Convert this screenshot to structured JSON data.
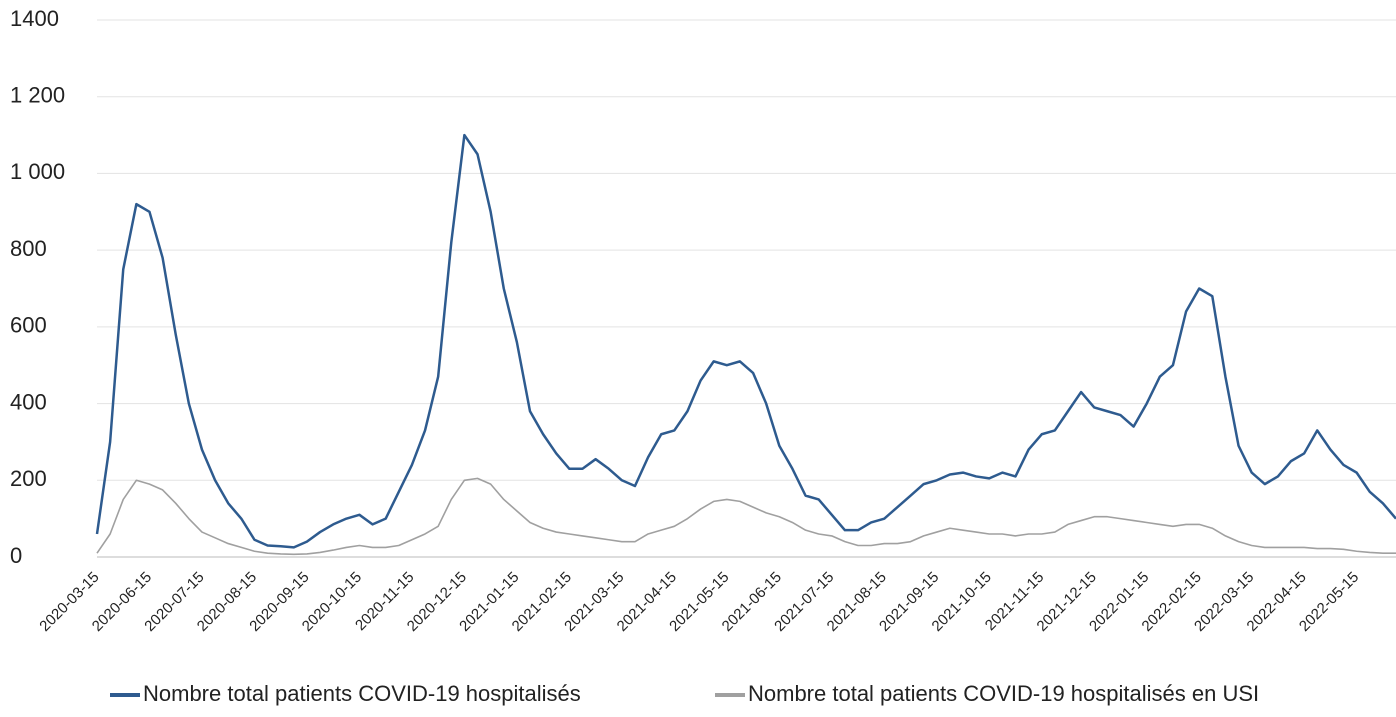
{
  "chart_data": {
    "type": "line",
    "categories": [
      "2020-03-15",
      null,
      null,
      null,
      "2020-06-15",
      null,
      null,
      null,
      "2020-07-15",
      null,
      null,
      null,
      "2020-08-15",
      null,
      null,
      null,
      "2020-09-15",
      null,
      null,
      null,
      "2020-10-15",
      null,
      null,
      null,
      "2020-11-15",
      null,
      null,
      null,
      "2020-12-15",
      null,
      null,
      null,
      "2021-01-15",
      null,
      null,
      null,
      "2021-02-15",
      null,
      null,
      null,
      "2021-03-15",
      null,
      null,
      null,
      "2021-04-15",
      null,
      null,
      null,
      "2021-05-15",
      null,
      null,
      null,
      "2021-06-15",
      null,
      null,
      null,
      "2021-07-15",
      null,
      null,
      null,
      "2021-08-15",
      null,
      null,
      null,
      "2021-09-15",
      null,
      null,
      null,
      "2021-10-15",
      null,
      null,
      null,
      "2021-11-15",
      null,
      null,
      null,
      "2021-12-15",
      null,
      null,
      null,
      "2022-01-15",
      null,
      null,
      null,
      "2022-02-15",
      null,
      null,
      null,
      "2022-03-15",
      null,
      null,
      null,
      "2022-04-15",
      null,
      null,
      null,
      "2022-05-15",
      null,
      null,
      null
    ],
    "series": [
      {
        "name": "Nombre total patients COVID-19 hospitalisés",
        "color": "#2e5b8f",
        "values": [
          60,
          300,
          750,
          920,
          900,
          780,
          580,
          400,
          280,
          200,
          140,
          100,
          45,
          30,
          28,
          25,
          40,
          65,
          85,
          100,
          110,
          85,
          100,
          170,
          240,
          330,
          470,
          820,
          1100,
          1050,
          900,
          700,
          560,
          380,
          320,
          270,
          230,
          230,
          255,
          230,
          200,
          185,
          260,
          320,
          330,
          380,
          460,
          510,
          500,
          510,
          480,
          400,
          290,
          230,
          160,
          150,
          110,
          70,
          70,
          90,
          100,
          130,
          160,
          190,
          200,
          215,
          220,
          210,
          205,
          220,
          210,
          280,
          320,
          330,
          380,
          430,
          390,
          380,
          370,
          340,
          400,
          470,
          500,
          640,
          700,
          680,
          470,
          290,
          220,
          190,
          210,
          250,
          270,
          330,
          280,
          240,
          220,
          170,
          140,
          100
        ]
      },
      {
        "name": "Nombre total patients COVID-19 hospitalisés en USI",
        "color": "#a0a0a0",
        "values": [
          10,
          60,
          150,
          200,
          190,
          175,
          140,
          100,
          65,
          50,
          35,
          25,
          15,
          10,
          8,
          7,
          8,
          12,
          18,
          25,
          30,
          25,
          25,
          30,
          45,
          60,
          80,
          150,
          200,
          205,
          190,
          150,
          120,
          90,
          75,
          65,
          60,
          55,
          50,
          45,
          40,
          40,
          60,
          70,
          80,
          100,
          125,
          145,
          150,
          145,
          130,
          115,
          105,
          90,
          70,
          60,
          55,
          40,
          30,
          30,
          35,
          35,
          40,
          55,
          65,
          75,
          70,
          65,
          60,
          60,
          55,
          60,
          60,
          65,
          85,
          95,
          105,
          105,
          100,
          95,
          90,
          85,
          80,
          85,
          85,
          75,
          55,
          40,
          30,
          25,
          25,
          25,
          25,
          22,
          22,
          20,
          15,
          12,
          10,
          10
        ]
      }
    ],
    "ylim": [
      0,
      1400
    ],
    "yticks": [
      0,
      200,
      400,
      600,
      800,
      {
        "value": 1000,
        "label": "1 000"
      },
      {
        "value": 1200,
        "label": "1 200"
      },
      1400
    ],
    "grid": true
  }
}
